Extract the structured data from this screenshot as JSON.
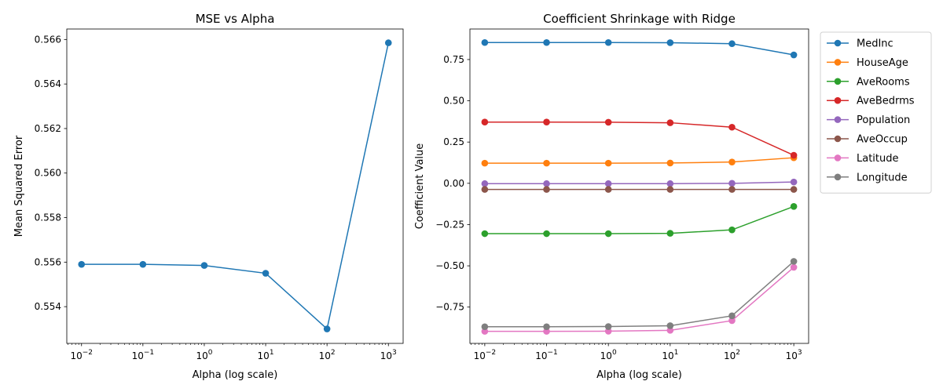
{
  "chart_data": [
    {
      "type": "line",
      "title": "MSE vs Alpha",
      "xlabel": "Alpha (log scale)",
      "ylabel": "Mean Squared Error",
      "xscale": "log",
      "x": [
        0.01,
        0.1,
        1,
        10,
        100,
        1000
      ],
      "x_tick_labels": [
        {
          "base": "10",
          "exp": "−2"
        },
        {
          "base": "10",
          "exp": "−1"
        },
        {
          "base": "10",
          "exp": "0"
        },
        {
          "base": "10",
          "exp": "1"
        },
        {
          "base": "10",
          "exp": "2"
        },
        {
          "base": "10",
          "exp": "3"
        }
      ],
      "ylim": [
        0.55235,
        0.56647
      ],
      "y_ticks": [
        0.554,
        0.556,
        0.558,
        0.56,
        0.562,
        0.564,
        0.566
      ],
      "y_tick_labels": [
        "0.554",
        "0.556",
        "0.558",
        "0.560",
        "0.562",
        "0.564",
        "0.566"
      ],
      "grid": false,
      "series": [
        {
          "color": "#1f77b4",
          "values": [
            0.5559,
            0.5559,
            0.55585,
            0.5555,
            0.553,
            0.56585
          ]
        }
      ]
    },
    {
      "type": "line",
      "title": "Coefficient Shrinkage with Ridge",
      "xlabel": "Alpha (log scale)",
      "ylabel": "Coefficient Value",
      "xscale": "log",
      "x": [
        0.01,
        0.1,
        1,
        10,
        100,
        1000
      ],
      "x_tick_labels": [
        {
          "base": "10",
          "exp": "−2"
        },
        {
          "base": "10",
          "exp": "−1"
        },
        {
          "base": "10",
          "exp": "0"
        },
        {
          "base": "10",
          "exp": "1"
        },
        {
          "base": "10",
          "exp": "2"
        },
        {
          "base": "10",
          "exp": "3"
        }
      ],
      "ylim": [
        -0.97,
        0.935
      ],
      "y_ticks": [
        -0.75,
        -0.5,
        -0.25,
        0.0,
        0.25,
        0.5,
        0.75
      ],
      "y_tick_labels": [
        "−0.75",
        "−0.50",
        "−0.25",
        "0.00",
        "0.25",
        "0.50",
        "0.75"
      ],
      "grid": false,
      "legend_position": "outside-right",
      "series": [
        {
          "name": "MedInc",
          "color": "#1f77b4",
          "values": [
            0.853,
            0.853,
            0.853,
            0.852,
            0.846,
            0.778
          ]
        },
        {
          "name": "HouseAge",
          "color": "#ff7f0e",
          "values": [
            0.122,
            0.122,
            0.122,
            0.123,
            0.129,
            0.155
          ]
        },
        {
          "name": "AveRooms",
          "color": "#2ca02c",
          "values": [
            -0.305,
            -0.305,
            -0.305,
            -0.303,
            -0.282,
            -0.14
          ]
        },
        {
          "name": "AveBedrms",
          "color": "#d62728",
          "values": [
            0.371,
            0.371,
            0.37,
            0.367,
            0.34,
            0.17
          ]
        },
        {
          "name": "Population",
          "color": "#9467bd",
          "values": [
            -0.002,
            -0.002,
            -0.002,
            -0.002,
            0.0,
            0.008
          ]
        },
        {
          "name": "AveOccup",
          "color": "#8c564b",
          "values": [
            -0.037,
            -0.037,
            -0.037,
            -0.037,
            -0.037,
            -0.037
          ]
        },
        {
          "name": "Latitude",
          "color": "#e377c2",
          "values": [
            -0.897,
            -0.897,
            -0.896,
            -0.891,
            -0.832,
            -0.509
          ]
        },
        {
          "name": "Longitude",
          "color": "#7f7f7f",
          "values": [
            -0.869,
            -0.869,
            -0.868,
            -0.863,
            -0.803,
            -0.473
          ]
        }
      ]
    }
  ]
}
